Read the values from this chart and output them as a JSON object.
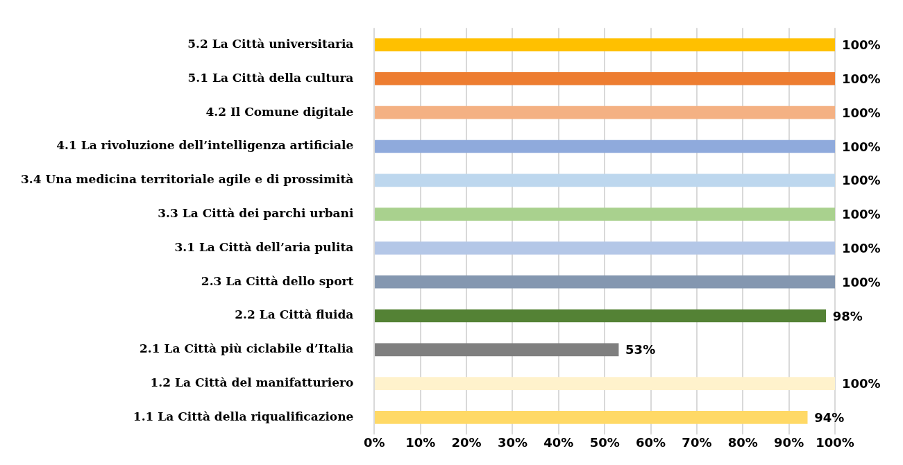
{
  "chart_data": {
    "type": "bar",
    "orientation": "horizontal",
    "categories": [
      "5.2 La Città universitaria",
      "5.1 La Città della cultura",
      "4.2 Il Comune digitale",
      "4.1 La rivoluzione dell’intelligenza artificiale",
      "3.4 Una medicina territoriale agile e di prossimità",
      "3.3 La Città dei parchi urbani",
      "3.1 La Città dell’aria pulita",
      "2.3 La Città dello sport",
      "2.2 La Città fluida",
      "2.1 La Città più ciclabile d’Italia",
      "1.2 La Città del manifatturiero",
      "1.1 La Città della riqualificazione"
    ],
    "values": [
      100,
      100,
      100,
      100,
      100,
      100,
      100,
      100,
      98,
      53,
      100,
      94
    ],
    "value_labels": [
      "100%",
      "100%",
      "100%",
      "100%",
      "100%",
      "100%",
      "100%",
      "100%",
      "98%",
      "53%",
      "100%",
      "94%"
    ],
    "colors": [
      "#ffc000",
      "#ed7d31",
      "#f4b183",
      "#8faadc",
      "#bdd7ee",
      "#a9d18e",
      "#b4c7e7",
      "#8497b0",
      "#548235",
      "#7f7f7f",
      "#fff2cc",
      "#ffd966"
    ],
    "xlim": [
      0,
      100
    ],
    "xticks": [
      {
        "value": 0,
        "label": "0%"
      },
      {
        "value": 10,
        "label": "10%"
      },
      {
        "value": 20,
        "label": "20%"
      },
      {
        "value": 30,
        "label": "30%"
      },
      {
        "value": 40,
        "label": "40%"
      },
      {
        "value": 50,
        "label": "50%"
      },
      {
        "value": 60,
        "label": "60%"
      },
      {
        "value": 70,
        "label": "70%"
      },
      {
        "value": 80,
        "label": "80%"
      },
      {
        "value": 90,
        "label": "90%"
      },
      {
        "value": 100,
        "label": "100%"
      }
    ],
    "grid": "x",
    "legend": false
  }
}
